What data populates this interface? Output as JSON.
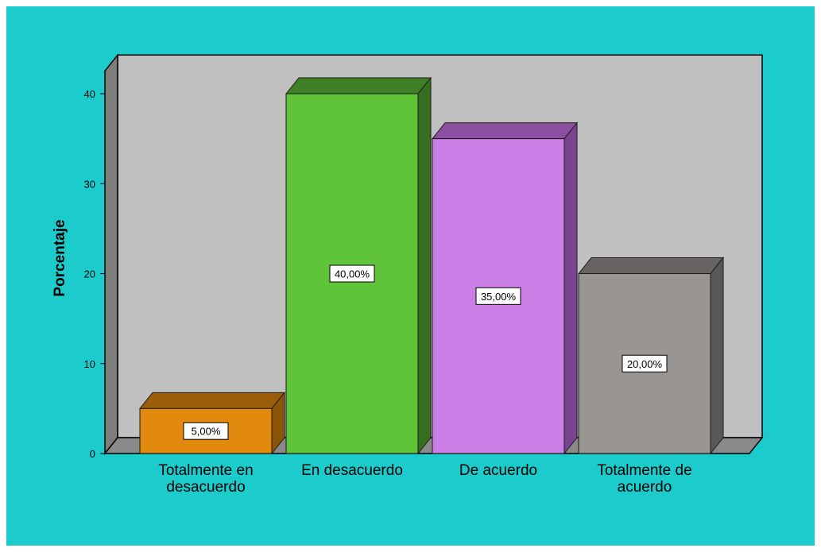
{
  "chart_data": {
    "type": "bar",
    "three_d": true,
    "categories": [
      "Totalmente en desacuerdo",
      "En desacuerdo",
      "De acuerdo",
      "Totalmente de acuerdo"
    ],
    "category_label_lines": [
      [
        "Totalmente en",
        "desacuerdo"
      ],
      [
        "En desacuerdo"
      ],
      [
        "De acuerdo"
      ],
      [
        "Totalmente de",
        "acuerdo"
      ]
    ],
    "values": [
      5,
      40,
      35,
      20
    ],
    "data_labels": [
      "5,00%",
      "40,00%",
      "35,00%",
      "20,00%"
    ],
    "title": "",
    "xlabel": "",
    "ylabel": "Porcentaje",
    "ylim": [
      0,
      40
    ],
    "yticks": [
      0,
      10,
      20,
      30,
      40
    ],
    "grid": false,
    "legend": "none"
  },
  "colors": {
    "background": "#1ccccc",
    "plot_back": "#c0c0c0",
    "wall_side": "#7d7d7d",
    "floor": "#8a8a8a",
    "bars": [
      {
        "front": "#e18a0e",
        "top": "#9a5d08",
        "side": "#8b5406"
      },
      {
        "front": "#60c43a",
        "top": "#3f7f25",
        "side": "#376f20"
      },
      {
        "front": "#cb7fe6",
        "top": "#8a4f9f",
        "side": "#7a4590"
      },
      {
        "front": "#999593",
        "top": "#666362",
        "side": "#5a5857"
      }
    ]
  }
}
